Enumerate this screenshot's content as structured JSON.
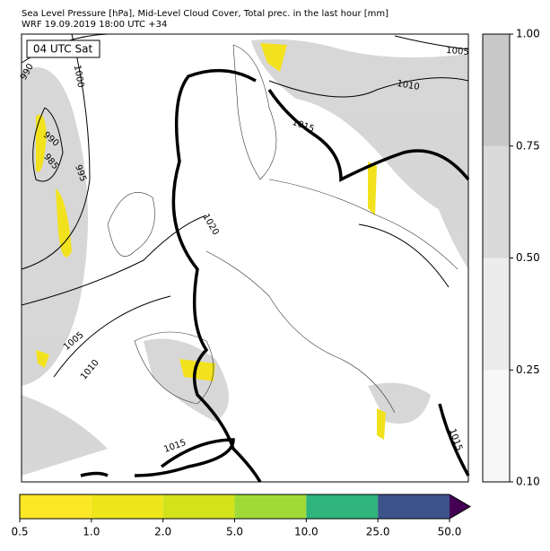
{
  "header": {
    "title": "Sea Level Pressure [hPa], Mid-Level Cloud Cover, Total prec. in the last hour [mm]",
    "subtitle": "WRF 19.09.2019 18:00 UTC +34"
  },
  "map": {
    "time_label": "04 UTC Sat",
    "isobar_labels": [
      990,
      1000,
      990,
      985,
      995,
      1020,
      1015,
      1010,
      1005,
      1005,
      1010,
      1015,
      1015
    ]
  },
  "cloud_colorbar": {
    "ticks": [
      {
        "value": 0.1,
        "label": "0.10"
      },
      {
        "value": 0.25,
        "label": "0.25"
      },
      {
        "value": 0.5,
        "label": "0.50"
      },
      {
        "value": 0.75,
        "label": "0.75"
      },
      {
        "value": 1,
        "label": "1.00"
      }
    ],
    "colors": [
      "#f7f7f7",
      "#ececec",
      "#dadada",
      "#c8c8c8"
    ]
  },
  "precip_colorbar": {
    "ticks": [
      0.5,
      {
        "value": 1,
        "label": "1.0"
      },
      {
        "value": 2,
        "label": "2.0"
      },
      {
        "value": 5,
        "label": "5.0"
      },
      {
        "value": 10,
        "label": "10.0"
      },
      {
        "value": 25,
        "label": "25.0"
      },
      {
        "value": 50,
        "label": "50.0"
      }
    ],
    "colors": [
      "#fde725",
      "#eee51b",
      "#d2e21b",
      "#a0da39",
      "#2fb47c",
      "#3b528b"
    ],
    "extend_color": "#440154"
  }
}
